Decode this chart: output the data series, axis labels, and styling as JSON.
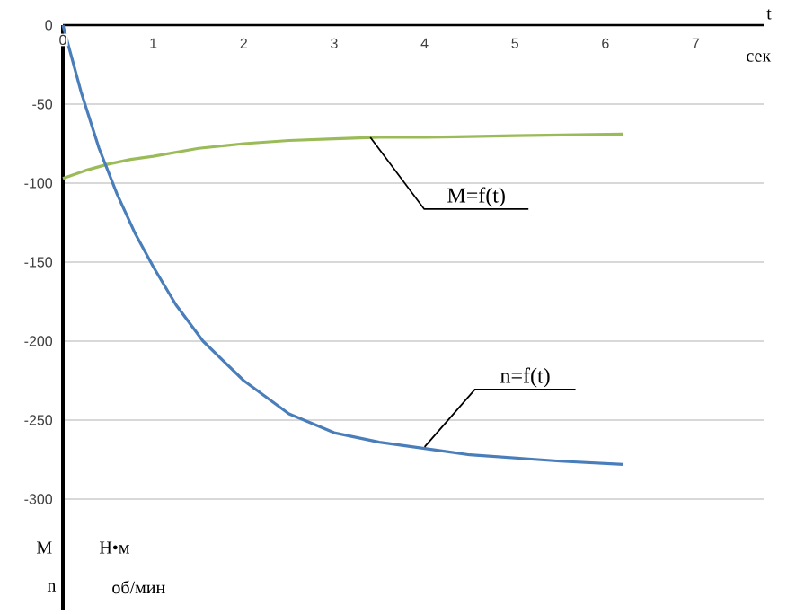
{
  "chart_data": {
    "type": "line",
    "xlabel": "t",
    "xlim": [
      0,
      7.75
    ],
    "xticks": [
      0,
      1,
      2,
      3,
      4,
      5,
      6,
      7
    ],
    "ylim": [
      -370,
      0
    ],
    "yticks": [
      -300,
      -250,
      -200,
      -150,
      -100,
      -50,
      0
    ],
    "grid": "y",
    "series": [
      {
        "color": "#9bbb59",
        "x": [
          0,
          0.25,
          0.5,
          0.75,
          1,
          1.5,
          2,
          2.5,
          3,
          3.5,
          4,
          5,
          6.2
        ],
        "values": [
          -97,
          -92,
          -88,
          -85,
          -83,
          -78,
          -75,
          -73,
          -72,
          -71,
          -71,
          -70,
          -69
        ]
      },
      {
        "color": "#4a7ebb",
        "x": [
          0,
          0.2,
          0.4,
          0.6,
          0.8,
          1,
          1.25,
          1.55,
          2,
          2.5,
          3,
          3.5,
          4,
          4.5,
          5,
          5.5,
          6.2
        ],
        "values": [
          0,
          -42,
          -78,
          -107,
          -132,
          -153,
          -177,
          -200,
          -225,
          -246,
          -258,
          -264,
          -268,
          -272,
          -274,
          -276,
          -278
        ]
      }
    ],
    "annotations": [
      {
        "text": "M=f(t)",
        "x": 3.4,
        "y": -71
      },
      {
        "text": "n=f(t)",
        "x": 4,
        "y": -267
      },
      "сек",
      "M",
      "Н•м",
      "n",
      "об/мин"
    ]
  }
}
